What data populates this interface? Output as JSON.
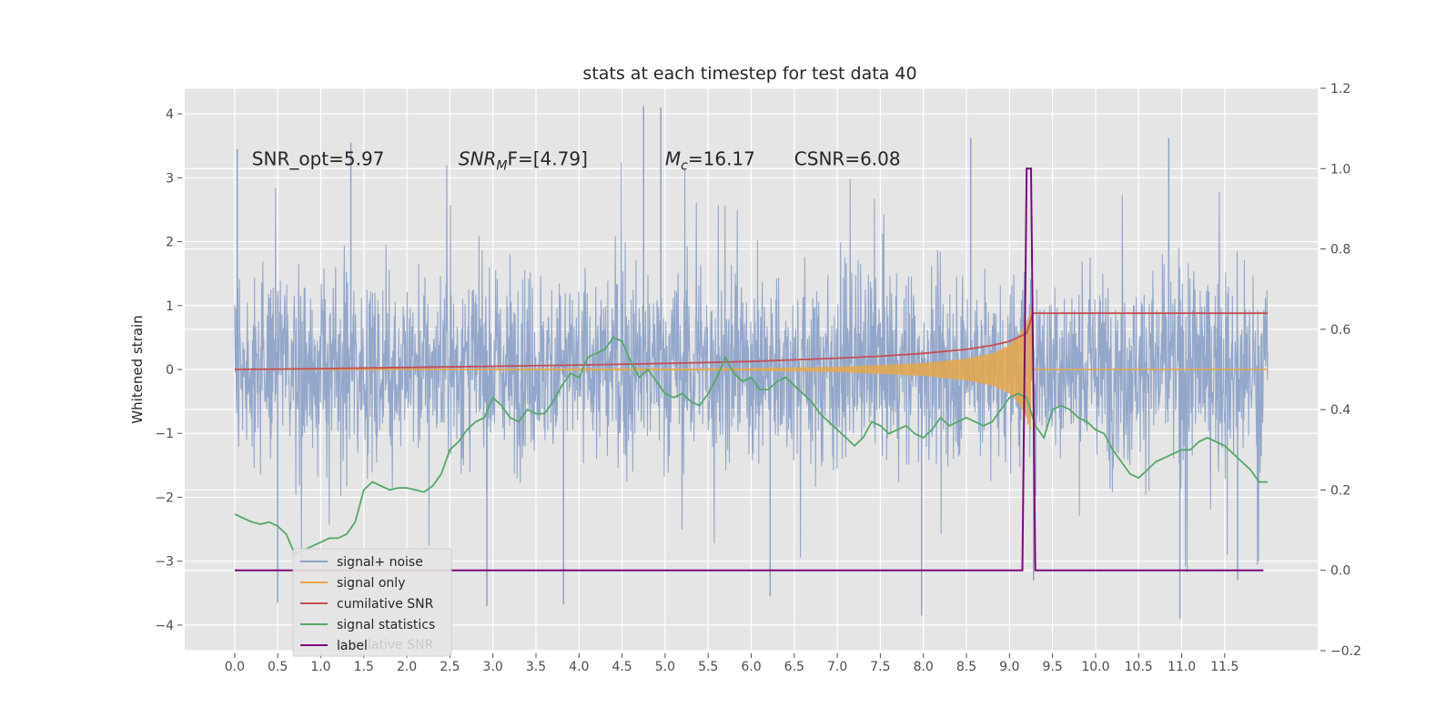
{
  "chart_data": {
    "type": "line",
    "title": "stats at each timestep for test data 40",
    "ylabel": "Whitened strain",
    "xlabel": "",
    "xlim": [
      -0.58,
      12.58
    ],
    "ylim": [
      -4.4,
      4.4
    ],
    "ylim_right": [
      -0.2,
      1.2
    ],
    "grid": true,
    "legend_position": "lower left",
    "x_ticks": [
      "0.0",
      "0.5",
      "1.0",
      "1.5",
      "2.0",
      "2.5",
      "3.0",
      "3.5",
      "4.0",
      "4.5",
      "5.0",
      "5.5",
      "6.0",
      "6.5",
      "7.0",
      "7.5",
      "8.0",
      "8.5",
      "9.0",
      "9.5",
      "10.0",
      "10.5",
      "11.0",
      "11.5"
    ],
    "y_ticks_left": [
      4,
      3,
      2,
      1,
      0,
      -1,
      -2,
      -3,
      -4
    ],
    "y_ticks_left_labels": [
      "4",
      "3",
      "2",
      "1",
      "0",
      "−1",
      "−2",
      "−3",
      "−4"
    ],
    "y_ticks_right": [
      1.2,
      1.0,
      0.8,
      0.6,
      0.4,
      0.2,
      0.0,
      -0.2
    ],
    "y_ticks_right_labels": [
      "1.2",
      "1.0",
      "0.8",
      "0.6",
      "0.4",
      "0.2",
      "0.0",
      "−0.2"
    ],
    "annotations": [
      {
        "text": "SNR_opt=5.97",
        "x": 0.2,
        "y": 3.3
      },
      {
        "text": "SNR_MF=[4.79]",
        "x": 2.6,
        "y": 3.3
      },
      {
        "text": "M_c=16.17",
        "x": 5.0,
        "y": 3.3
      },
      {
        "text": "CSNR=6.08",
        "x": 6.5,
        "y": 3.3
      }
    ],
    "series": [
      {
        "name": "signal+ noise",
        "color": "#8ea3c9",
        "axis": "left",
        "style": "noise band",
        "x_range": [
          0.0,
          12.0
        ],
        "typical_range": [
          -1.8,
          2.0
        ],
        "spikes": [
          {
            "x": 0.03,
            "y": 3.45
          },
          {
            "x": 1.35,
            "y": 3.55
          },
          {
            "x": 4.75,
            "y": 4.12
          },
          {
            "x": 4.95,
            "y": 4.1
          },
          {
            "x": 8.55,
            "y": 3.62
          },
          {
            "x": 10.85,
            "y": 3.62
          },
          {
            "x": 0.5,
            "y": -3.65
          },
          {
            "x": 2.93,
            "y": -3.7
          },
          {
            "x": 3.82,
            "y": -3.68
          },
          {
            "x": 7.98,
            "y": -3.85
          },
          {
            "x": 10.98,
            "y": -3.9
          },
          {
            "x": 6.22,
            "y": -3.55
          },
          {
            "x": 9.28,
            "y": -3.3
          },
          {
            "x": 11.65,
            "y": -3.3
          }
        ]
      },
      {
        "name": "signal only",
        "color": "#e6a84a",
        "axis": "left",
        "style": "chirp",
        "x": [
          0,
          6.0,
          7.0,
          8.0,
          8.5,
          8.8,
          9.0,
          9.1,
          9.2,
          9.25
        ],
        "amplitude": [
          0.01,
          0.02,
          0.04,
          0.1,
          0.17,
          0.25,
          0.38,
          0.52,
          0.75,
          0.95
        ]
      },
      {
        "name": "cumilative SNR",
        "color": "#c44e52",
        "axis": "right",
        "x": [
          0,
          1,
          2,
          3,
          4,
          5,
          6,
          7,
          7.5,
          8,
          8.5,
          8.8,
          9.0,
          9.1,
          9.2,
          9.27,
          9.3,
          12.0
        ],
        "y": [
          0.5,
          0.502,
          0.505,
          0.508,
          0.511,
          0.515,
          0.52,
          0.528,
          0.533,
          0.54,
          0.55,
          0.56,
          0.57,
          0.58,
          0.59,
          0.64,
          0.64,
          0.64
        ]
      },
      {
        "name": "signal statistics",
        "color": "#55a868",
        "axis": "right",
        "x": [
          0.0,
          0.1,
          0.2,
          0.3,
          0.4,
          0.5,
          0.6,
          0.7,
          0.8,
          0.9,
          1.0,
          1.1,
          1.2,
          1.3,
          1.4,
          1.5,
          1.6,
          1.7,
          1.8,
          1.9,
          2.0,
          2.1,
          2.2,
          2.3,
          2.4,
          2.5,
          2.6,
          2.7,
          2.8,
          2.9,
          3.0,
          3.1,
          3.2,
          3.3,
          3.4,
          3.5,
          3.6,
          3.7,
          3.8,
          3.9,
          4.0,
          4.1,
          4.2,
          4.3,
          4.4,
          4.5,
          4.6,
          4.7,
          4.8,
          4.9,
          5.0,
          5.1,
          5.2,
          5.3,
          5.4,
          5.5,
          5.6,
          5.7,
          5.8,
          5.9,
          6.0,
          6.1,
          6.2,
          6.3,
          6.4,
          6.5,
          6.6,
          6.7,
          6.8,
          6.9,
          7.0,
          7.1,
          7.2,
          7.3,
          7.4,
          7.5,
          7.6,
          7.7,
          7.8,
          7.9,
          8.0,
          8.1,
          8.2,
          8.3,
          8.4,
          8.5,
          8.6,
          8.7,
          8.8,
          8.9,
          9.0,
          9.1,
          9.2,
          9.3,
          9.4,
          9.5,
          9.6,
          9.7,
          9.8,
          9.9,
          10.0,
          10.1,
          10.2,
          10.3,
          10.4,
          10.5,
          10.6,
          10.7,
          10.8,
          10.9,
          11.0,
          11.1,
          11.2,
          11.3,
          11.4,
          11.5,
          11.6,
          11.7,
          11.8,
          11.9,
          12.0
        ],
        "y": [
          0.14,
          0.13,
          0.12,
          0.115,
          0.12,
          0.11,
          0.09,
          0.04,
          0.05,
          0.06,
          0.07,
          0.08,
          0.08,
          0.09,
          0.12,
          0.2,
          0.22,
          0.21,
          0.2,
          0.205,
          0.205,
          0.2,
          0.195,
          0.21,
          0.24,
          0.3,
          0.32,
          0.35,
          0.37,
          0.38,
          0.43,
          0.41,
          0.38,
          0.37,
          0.4,
          0.39,
          0.39,
          0.42,
          0.46,
          0.49,
          0.48,
          0.53,
          0.54,
          0.55,
          0.58,
          0.57,
          0.52,
          0.48,
          0.5,
          0.47,
          0.44,
          0.43,
          0.44,
          0.42,
          0.41,
          0.44,
          0.48,
          0.53,
          0.49,
          0.47,
          0.48,
          0.45,
          0.45,
          0.47,
          0.48,
          0.46,
          0.44,
          0.42,
          0.39,
          0.37,
          0.35,
          0.33,
          0.31,
          0.33,
          0.37,
          0.36,
          0.34,
          0.35,
          0.36,
          0.34,
          0.33,
          0.35,
          0.38,
          0.36,
          0.37,
          0.38,
          0.37,
          0.36,
          0.37,
          0.4,
          0.43,
          0.44,
          0.43,
          0.36,
          0.33,
          0.4,
          0.41,
          0.4,
          0.38,
          0.37,
          0.35,
          0.34,
          0.3,
          0.27,
          0.24,
          0.23,
          0.25,
          0.27,
          0.28,
          0.29,
          0.3,
          0.3,
          0.32,
          0.33,
          0.32,
          0.31,
          0.29,
          0.27,
          0.25,
          0.22,
          0.22
        ]
      },
      {
        "name": "label",
        "color": "#7b0a7b",
        "axis": "right",
        "x": [
          0.0,
          9.15,
          9.2,
          9.25,
          9.3,
          11.95
        ],
        "y": [
          0.0,
          0.0,
          1.0,
          1.0,
          0.0,
          0.0
        ]
      }
    ],
    "legend": [
      "signal+ noise",
      "signal only",
      "cumilative SNR",
      "signal statistics",
      "label"
    ],
    "legend_ghost_text": "cumilative SNR"
  }
}
